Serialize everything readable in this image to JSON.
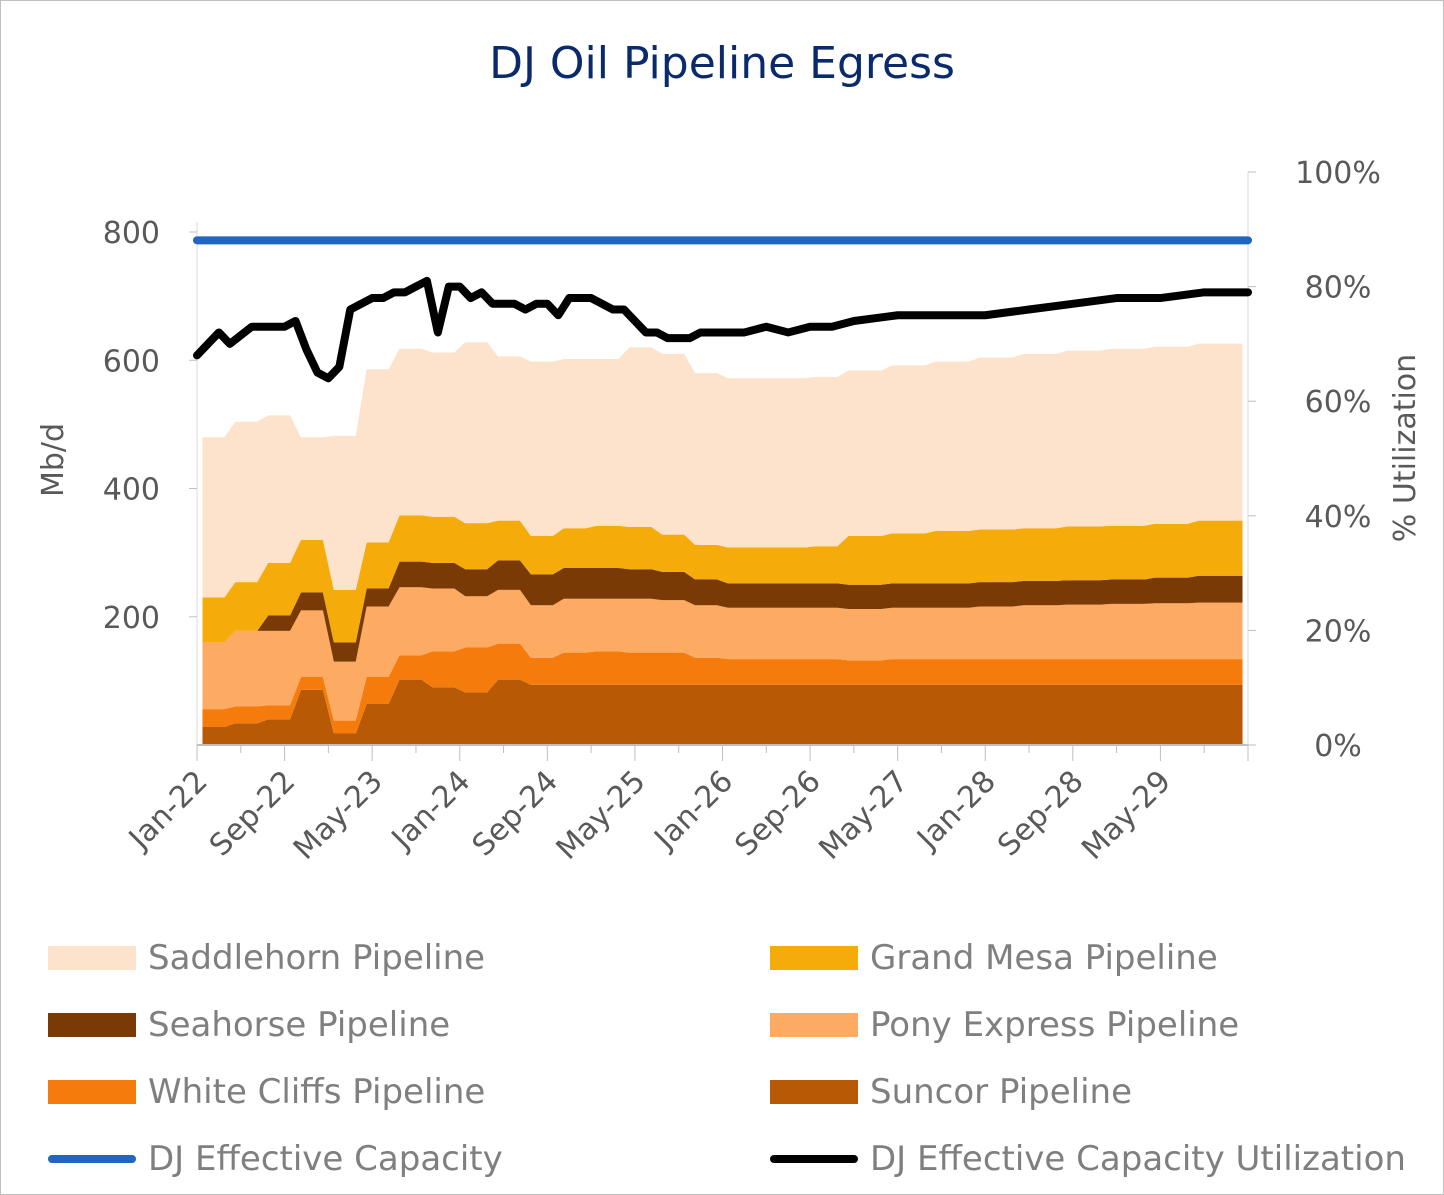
{
  "title": "DJ Oil Pipeline Egress",
  "chart_data": {
    "type": "area",
    "title": "DJ Oil Pipeline Egress",
    "ylabel": "Mb/d",
    "y2label": "% Utilization",
    "ylim": [
      0,
      800
    ],
    "y2lim": [
      0,
      100
    ],
    "yticks": [
      "200",
      "400",
      "600",
      "800"
    ],
    "y2ticks": [
      "0%",
      "20%",
      "40%",
      "60%",
      "80%",
      "100%"
    ],
    "x_tick_labels": [
      "Jan-22",
      "Sep-22",
      "May-23",
      "Jan-24",
      "Sep-24",
      "May-25",
      "Jan-26",
      "Sep-26",
      "May-27",
      "Jan-28",
      "Sep-28",
      "May-29"
    ],
    "x_tick_months": [
      0,
      8,
      16,
      24,
      32,
      40,
      48,
      56,
      64,
      72,
      80,
      88
    ],
    "x_range_months": [
      0,
      96
    ],
    "stack_months": [
      0.5,
      2.5,
      3.5,
      5.5,
      6.5,
      8.5,
      9.5,
      11.5,
      12.5,
      14.5,
      15.5,
      17.5,
      18.5,
      20.5,
      21.5,
      23.5,
      24.5,
      26.5,
      27.5,
      29.5,
      30.5,
      32.5,
      33.5,
      35.5,
      36.5,
      38.5,
      39.5,
      41.5,
      42.5,
      44.5,
      45.5,
      47.5,
      48.5,
      51.5,
      52.5,
      55.5,
      56.5,
      58.5,
      59.5,
      62.5,
      63.5,
      66.5,
      67.5,
      70.5,
      71.5,
      74.5,
      75.5,
      78.5,
      79.5,
      82.5,
      83.5,
      86.5,
      87.5,
      90.5,
      91.5,
      95.5
    ],
    "series": [
      {
        "name": "Suncor Pipeline",
        "color": "#b85a05",
        "values": [
          28,
          28,
          34,
          34,
          40,
          40,
          86,
          86,
          18,
          18,
          64,
          64,
          102,
          102,
          90,
          90,
          82,
          82,
          102,
          102,
          94,
          94,
          94,
          94,
          94,
          94,
          94,
          94,
          94,
          94,
          94,
          94,
          94,
          94,
          94,
          94,
          94,
          94,
          94,
          94,
          94,
          94,
          94,
          94,
          94,
          94,
          94,
          94,
          94,
          94,
          94,
          94,
          94,
          94,
          94,
          94
        ]
      },
      {
        "name": "White Cliffs Pipeline",
        "color": "#f57b0c",
        "values": [
          28,
          28,
          26,
          26,
          22,
          22,
          20,
          20,
          20,
          20,
          42,
          42,
          38,
          38,
          56,
          56,
          70,
          70,
          56,
          56,
          42,
          42,
          50,
          50,
          52,
          52,
          50,
          50,
          50,
          50,
          42,
          42,
          40,
          40,
          40,
          40,
          40,
          40,
          38,
          38,
          40,
          40,
          40,
          40,
          40,
          40,
          40,
          40,
          40,
          40,
          40,
          40,
          40,
          40,
          40,
          40
        ]
      },
      {
        "name": "Pony Express Pipeline",
        "color": "#fdaa62",
        "values": [
          104,
          104,
          118,
          118,
          116,
          116,
          104,
          104,
          92,
          92,
          110,
          110,
          106,
          106,
          98,
          98,
          80,
          80,
          84,
          84,
          82,
          82,
          84,
          84,
          82,
          82,
          84,
          84,
          82,
          82,
          82,
          82,
          80,
          80,
          80,
          80,
          80,
          80,
          80,
          80,
          80,
          80,
          80,
          80,
          82,
          82,
          84,
          84,
          85,
          85,
          86,
          86,
          87,
          87,
          88,
          88
        ]
      },
      {
        "name": "Seahorse Pipeline",
        "color": "#7a3a05",
        "values": [
          0,
          0,
          0,
          0,
          24,
          24,
          28,
          28,
          30,
          30,
          28,
          28,
          40,
          40,
          40,
          40,
          42,
          42,
          46,
          46,
          48,
          48,
          48,
          48,
          48,
          48,
          46,
          46,
          44,
          44,
          40,
          40,
          38,
          38,
          38,
          38,
          38,
          38,
          38,
          38,
          38,
          38,
          38,
          38,
          38,
          38,
          38,
          38,
          38,
          38,
          38,
          38,
          40,
          40,
          42,
          42
        ]
      },
      {
        "name": "Grand Mesa Pipeline",
        "color": "#f5ac0a",
        "values": [
          70,
          70,
          76,
          76,
          82,
          82,
          82,
          82,
          82,
          82,
          72,
          72,
          72,
          72,
          72,
          72,
          72,
          72,
          62,
          62,
          60,
          60,
          62,
          62,
          66,
          66,
          66,
          66,
          58,
          58,
          54,
          54,
          56,
          56,
          56,
          56,
          58,
          58,
          76,
          76,
          78,
          78,
          82,
          82,
          82,
          82,
          82,
          82,
          84,
          84,
          84,
          84,
          84,
          84,
          86,
          86
        ]
      },
      {
        "name": "Saddlehorn Pipeline",
        "color": "#fde3cc",
        "values": [
          250,
          250,
          250,
          250,
          230,
          230,
          160,
          160,
          240,
          240,
          270,
          270,
          260,
          260,
          256,
          256,
          282,
          282,
          256,
          256,
          272,
          272,
          264,
          264,
          260,
          260,
          280,
          280,
          282,
          282,
          268,
          268,
          264,
          264,
          264,
          264,
          264,
          264,
          258,
          258,
          262,
          262,
          264,
          264,
          268,
          268,
          272,
          272,
          274,
          274,
          276,
          276,
          276,
          276,
          276,
          276
        ]
      },
      {
        "name": "DJ Effective Capacity",
        "color": "#1f66c1",
        "axis": "left",
        "months": [
          0,
          96
        ],
        "values": [
          787,
          787
        ]
      },
      {
        "name": "DJ Effective Capacity Utilization",
        "color": "#000000",
        "axis": "right",
        "months": [
          0,
          2,
          3,
          5,
          6,
          8,
          9,
          10,
          11,
          12,
          13,
          14,
          15,
          16,
          17,
          18,
          19,
          20,
          21,
          22,
          23,
          24,
          25,
          26,
          27,
          28,
          29,
          30,
          31,
          32,
          33,
          34,
          35,
          36,
          37,
          38,
          39,
          40,
          41,
          42,
          43,
          44,
          45,
          46,
          47,
          48,
          50,
          52,
          54,
          56,
          58,
          60,
          64,
          68,
          72,
          76,
          80,
          84,
          88,
          92,
          96
        ],
        "values": [
          68,
          72,
          70,
          73,
          73,
          73,
          74,
          69,
          65,
          64,
          66,
          76,
          77,
          78,
          78,
          79,
          79,
          80,
          81,
          72,
          80,
          80,
          78,
          79,
          77,
          77,
          77,
          76,
          77,
          77,
          75,
          78,
          78,
          78,
          77,
          76,
          76,
          74,
          72,
          72,
          71,
          71,
          71,
          72,
          72,
          72,
          72,
          73,
          72,
          73,
          73,
          74,
          75,
          75,
          75,
          76,
          77,
          78,
          78,
          79,
          79
        ]
      }
    ],
    "legend_position": "bottom",
    "grid": false
  },
  "legend": [
    {
      "label": "Saddlehorn Pipeline",
      "color": "#fde3cc",
      "kind": "area"
    },
    {
      "label": "Grand Mesa Pipeline",
      "color": "#f5ac0a",
      "kind": "area"
    },
    {
      "label": "Seahorse Pipeline",
      "color": "#7a3a05",
      "kind": "area"
    },
    {
      "label": "Pony Express Pipeline",
      "color": "#fdaa62",
      "kind": "area"
    },
    {
      "label": "White Cliffs Pipeline",
      "color": "#f57b0c",
      "kind": "area"
    },
    {
      "label": "Suncor Pipeline",
      "color": "#b85a05",
      "kind": "area"
    },
    {
      "label": "DJ Effective Capacity",
      "color": "#1f66c1",
      "kind": "line"
    },
    {
      "label": "DJ Effective Capacity Utilization",
      "color": "#000000",
      "kind": "line"
    }
  ]
}
